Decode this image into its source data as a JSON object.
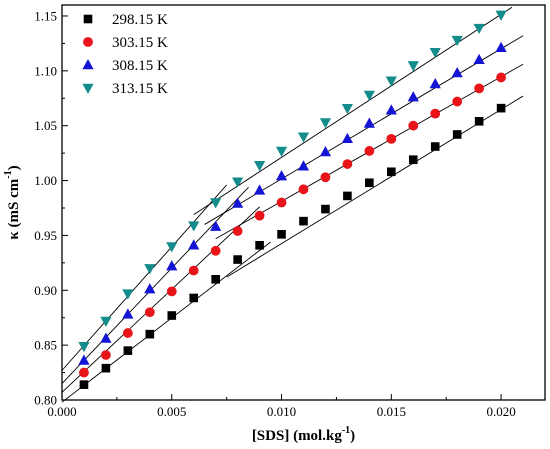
{
  "chart_data": {
    "type": "scatter",
    "xlabel": "[SDS] (mol.kg",
    "xlabel_sup": "-1",
    "xlabel_end": ")",
    "ylabel": "κ (mS cm",
    "ylabel_sup": "-1",
    "ylabel_end": ")",
    "xlim": [
      0.0,
      0.022
    ],
    "ylim": [
      0.8,
      1.16
    ],
    "xticks": [
      0.0,
      0.005,
      0.01,
      0.015,
      0.02
    ],
    "xtick_labels": [
      "0.000",
      "0.005",
      "0.010",
      "0.015",
      "0.020"
    ],
    "yticks": [
      0.8,
      0.85,
      0.9,
      0.95,
      1.0,
      1.05,
      1.1,
      1.15
    ],
    "ytick_labels": [
      "0.80",
      "0.85",
      "0.90",
      "0.95",
      "1.00",
      "1.05",
      "1.10",
      "1.15"
    ],
    "grid": false,
    "legend_position": "top-left",
    "x": [
      0.001,
      0.002,
      0.003,
      0.004,
      0.005,
      0.006,
      0.007,
      0.008,
      0.009,
      0.01,
      0.011,
      0.012,
      0.013,
      0.014,
      0.015,
      0.016,
      0.017,
      0.018,
      0.019,
      0.02
    ],
    "series": [
      {
        "name": "298.15 K",
        "marker": "square",
        "color": "#000000",
        "values": [
          0.814,
          0.829,
          0.845,
          0.86,
          0.877,
          0.893,
          0.91,
          0.928,
          0.941,
          0.951,
          0.963,
          0.974,
          0.986,
          0.998,
          1.008,
          1.019,
          1.031,
          1.042,
          1.054,
          1.066
        ],
        "fit_lines": [
          {
            "x": [
              0.0,
              0.0095
            ],
            "y": [
              0.798,
              0.944
            ]
          },
          {
            "x": [
              0.0075,
              0.021
            ],
            "y": [
              0.912,
              1.077
            ]
          }
        ]
      },
      {
        "name": "303.15 K",
        "marker": "circle",
        "color": "#e8141a",
        "values": [
          0.825,
          0.841,
          0.861,
          0.88,
          0.899,
          0.918,
          0.936,
          0.954,
          0.968,
          0.98,
          0.992,
          1.003,
          1.015,
          1.027,
          1.038,
          1.05,
          1.061,
          1.072,
          1.084,
          1.094
        ],
        "fit_lines": [
          {
            "x": [
              0.0,
              0.009
            ],
            "y": [
              0.807,
              0.976
            ]
          },
          {
            "x": [
              0.007,
              0.021
            ],
            "y": [
              0.947,
              1.106
            ]
          }
        ]
      },
      {
        "name": "308.15 K",
        "marker": "triangle-up",
        "color": "#1414d4",
        "values": [
          0.836,
          0.856,
          0.878,
          0.901,
          0.922,
          0.941,
          0.958,
          0.979,
          0.991,
          1.004,
          1.013,
          1.026,
          1.038,
          1.052,
          1.064,
          1.076,
          1.088,
          1.098,
          1.11,
          1.121
        ],
        "fit_lines": [
          {
            "x": [
              0.0,
              0.0085
            ],
            "y": [
              0.815,
              0.994
            ]
          },
          {
            "x": [
              0.0065,
              0.021
            ],
            "y": [
              0.96,
              1.132
            ]
          }
        ]
      },
      {
        "name": "313.15 K",
        "marker": "triangle-down",
        "color": "#148c8c",
        "values": [
          0.849,
          0.872,
          0.897,
          0.92,
          0.94,
          0.959,
          0.98,
          0.999,
          1.014,
          1.027,
          1.04,
          1.053,
          1.066,
          1.078,
          1.091,
          1.105,
          1.117,
          1.128,
          1.139,
          1.151
        ],
        "fit_lines": [
          {
            "x": [
              0.0,
              0.0075
            ],
            "y": [
              0.827,
              0.996
            ]
          },
          {
            "x": [
              0.006,
              0.0205
            ],
            "y": [
              0.969,
              1.158
            ]
          }
        ]
      }
    ]
  }
}
